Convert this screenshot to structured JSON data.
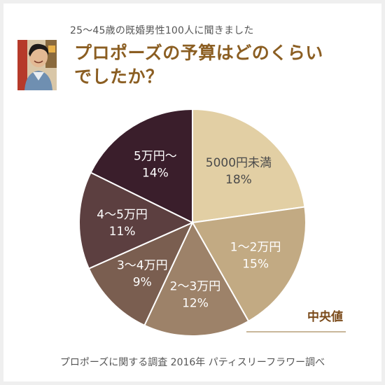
{
  "header": {
    "subtitle": "25～45歳の既婚男性100人に聞きました",
    "title_line1": "プロポーズの予算はどのくらい",
    "title_line2": "でしたか？"
  },
  "footer": {
    "source": "プロポーズに関する調査 2016年 パティスリーフラワー調べ"
  },
  "annotation": {
    "median_label": "中央値",
    "median_color": "#7a4a1a"
  },
  "chart_data": {
    "type": "pie",
    "start": "12 o'clock",
    "direction": "clockwise",
    "slices": [
      {
        "label": "5000円未満",
        "value": 18,
        "value_label": "18%",
        "color": "#e2cfa4",
        "text_color": "#4a4a4a"
      },
      {
        "label": "1～2万円",
        "value": 15,
        "value_label": "15%",
        "color": "#c2aa83",
        "text_color": "#ffffff"
      },
      {
        "label": "2～3万円",
        "value": 12,
        "value_label": "12%",
        "color": "#9d8269",
        "text_color": "#ffffff"
      },
      {
        "label": "3～4万円",
        "value": 9,
        "value_label": "9%",
        "color": "#7a5e50",
        "text_color": "#ffffff"
      },
      {
        "label": "4～5万円",
        "value": 11,
        "value_label": "11%",
        "color": "#5c3f40",
        "text_color": "#ffffff"
      },
      {
        "label": "5万円～",
        "value": 14,
        "value_label": "14%",
        "color": "#3a1e2b",
        "text_color": "#ffffff"
      }
    ]
  }
}
